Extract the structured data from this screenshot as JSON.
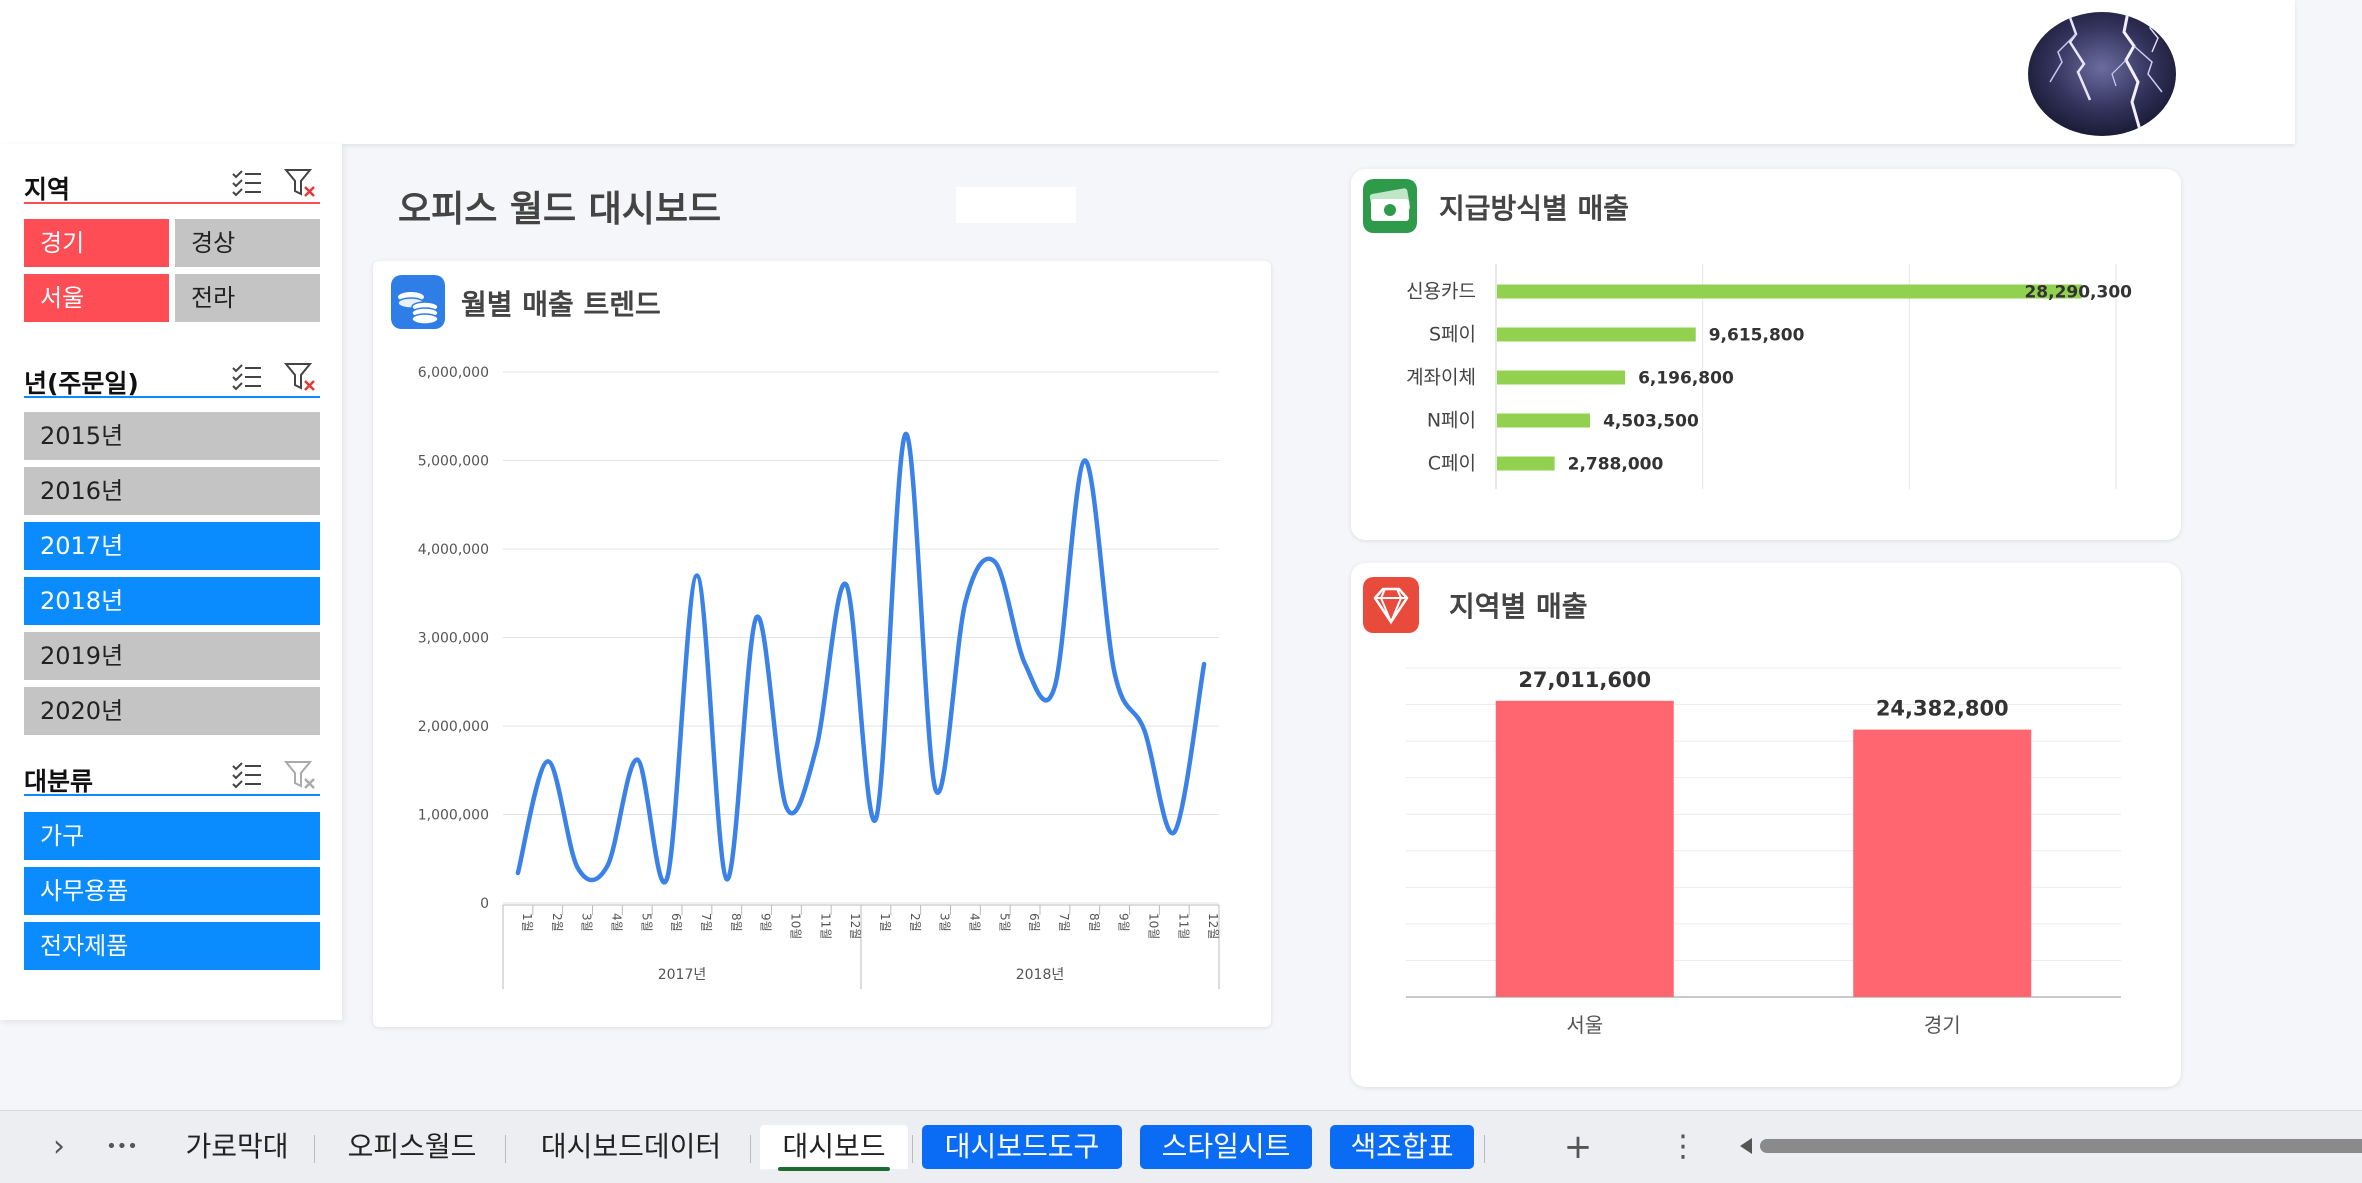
{
  "slicers": {
    "region": {
      "title": "지역",
      "items": [
        {
          "label": "경기",
          "selected": true
        },
        {
          "label": "경상",
          "selected": false
        },
        {
          "label": "서울",
          "selected": true
        },
        {
          "label": "전라",
          "selected": false
        }
      ]
    },
    "year": {
      "title": "년(주문일)",
      "items": [
        {
          "label": "2015년",
          "selected": false
        },
        {
          "label": "2016년",
          "selected": false
        },
        {
          "label": "2017년",
          "selected": true
        },
        {
          "label": "2018년",
          "selected": true
        },
        {
          "label": "2019년",
          "selected": false
        },
        {
          "label": "2020년",
          "selected": false
        }
      ]
    },
    "category": {
      "title": "대분류",
      "items": [
        {
          "label": "가구",
          "selected": true
        },
        {
          "label": "사무용품",
          "selected": true
        },
        {
          "label": "전자제품",
          "selected": true
        }
      ]
    }
  },
  "dashboard": {
    "title": "오피스 월드 대시보드"
  },
  "colors": {
    "region_selected": "#ff4d55",
    "year_selected": "#0a8cff",
    "chip_unselected": "#c4c4c4",
    "trend_line": "#3b82e8",
    "payment_bar": "#92d050",
    "region_bar": "#ff6670"
  },
  "cards": {
    "trend": {
      "title": "월별 매출 트렌드",
      "icon": "coins-icon"
    },
    "payment": {
      "title": "지급방식별 매출",
      "icon": "money-icon"
    },
    "region": {
      "title": "지역별 매출",
      "icon": "diamond-icon"
    }
  },
  "chart_data": [
    {
      "type": "line",
      "title": "월별 매출 트렌드",
      "x": [
        "1월",
        "2월",
        "3월",
        "4월",
        "5월",
        "6월",
        "7월",
        "8월",
        "9월",
        "10월",
        "11월",
        "12월",
        "1월",
        "2월",
        "3월",
        "4월",
        "5월",
        "6월",
        "7월",
        "8월",
        "9월",
        "10월",
        "11월",
        "12월"
      ],
      "groups": [
        {
          "label": "2017년",
          "span": 12
        },
        {
          "label": "2018년",
          "span": 12
        }
      ],
      "y_ticks": [
        "0",
        "1,000,000",
        "2,000,000",
        "3,000,000",
        "4,000,000",
        "5,000,000",
        "6,000,000"
      ],
      "ylim": [
        0,
        6000000
      ],
      "grid": true,
      "series": [
        {
          "values": [
            340000,
            1600000,
            400000,
            420000,
            1620000,
            280000,
            3700000,
            270000,
            3230000,
            1080000,
            1750000,
            3600000,
            950000,
            5300000,
            1280000,
            3400000,
            3850000,
            2700000,
            2450000,
            5000000,
            2600000,
            1950000,
            800000,
            2700000
          ]
        }
      ]
    },
    {
      "type": "bar",
      "orientation": "horizontal",
      "title": "지급방식별 매출",
      "categories": [
        "신용카드",
        "S페이",
        "계좌이체",
        "N페이",
        "C페이"
      ],
      "values": [
        28290300,
        9615800,
        6196800,
        4503500,
        2788000
      ],
      "value_labels": [
        "28,290,300",
        "9,615,800",
        "6,196,800",
        "4,503,500",
        "2,788,000"
      ],
      "xlim": [
        0,
        30000000
      ],
      "grid": true
    },
    {
      "type": "bar",
      "title": "지역별 매출",
      "categories": [
        "서울",
        "경기"
      ],
      "values": [
        27011600,
        24382800
      ],
      "value_labels": [
        "27,011,600",
        "24,382,800"
      ],
      "ylim": [
        0,
        30000000
      ],
      "grid": true
    }
  ],
  "sheet_tabs": [
    {
      "label": "가로막대",
      "style": "plain"
    },
    {
      "label": "오피스월드",
      "style": "plain"
    },
    {
      "label": "대시보드데이터",
      "style": "plain"
    },
    {
      "label": "대시보드",
      "style": "active"
    },
    {
      "label": "대시보드도구",
      "style": "blue"
    },
    {
      "label": "스타일시트",
      "style": "blue"
    },
    {
      "label": "색조합표",
      "style": "blue"
    }
  ],
  "tabbar": {
    "next_glyph": "›",
    "more_glyph": "•••",
    "add_glyph": "+",
    "menu_glyph": "⋮"
  }
}
